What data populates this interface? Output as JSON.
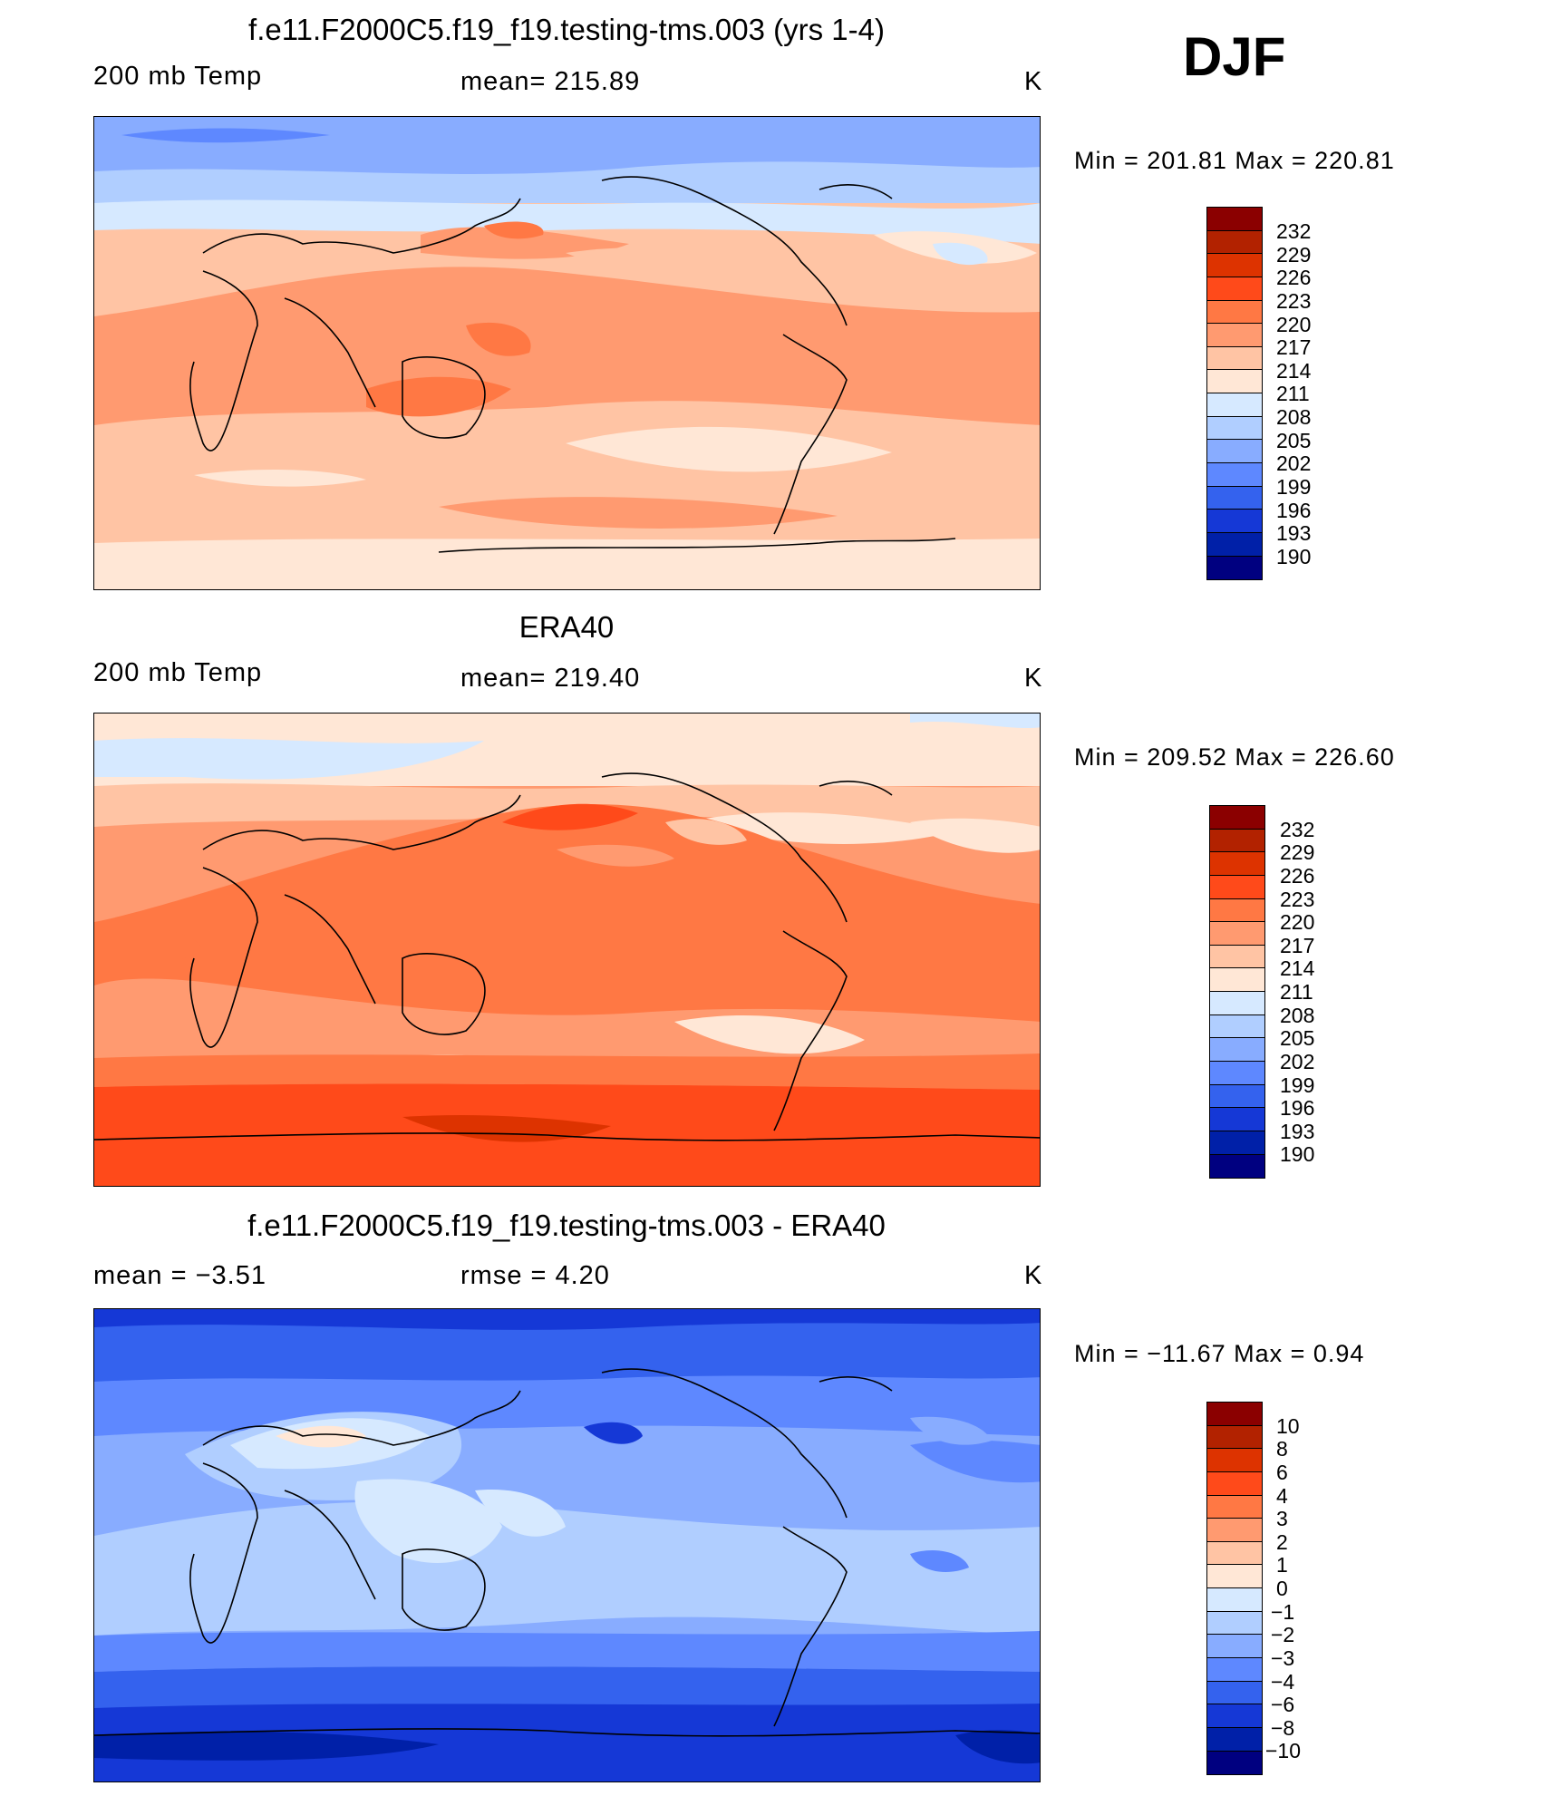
{
  "season": "DJF",
  "panels": [
    {
      "title": "f.e11.F2000C5.f19_f19.testing-tms.003 (yrs 1-4)",
      "left_text": "200 mb Temp",
      "center_text": "mean=  215.89",
      "units": "K",
      "minmax": "Min  =  201.81  Max  =  220.81",
      "levels": [
        "232",
        "229",
        "226",
        "223",
        "220",
        "217",
        "214",
        "211",
        "208",
        "205",
        "202",
        "199",
        "196",
        "193",
        "190"
      ],
      "colors": [
        "#8b0000",
        "#b22200",
        "#dd3300",
        "#ff4a1a",
        "#ff7844",
        "#ff9a70",
        "#ffc4a4",
        "#ffe7d6",
        "#d6e9ff",
        "#b0ceff",
        "#88acff",
        "#5e88ff",
        "#3462ee",
        "#1538d6",
        "#0020a8",
        "#000080"
      ]
    },
    {
      "title": "ERA40",
      "left_text": "200 mb Temp",
      "center_text": "mean=  219.40",
      "units": "K",
      "minmax": "Min  =  209.52  Max  =  226.60",
      "levels": [
        "232",
        "229",
        "226",
        "223",
        "220",
        "217",
        "214",
        "211",
        "208",
        "205",
        "202",
        "199",
        "196",
        "193",
        "190"
      ],
      "colors": [
        "#8b0000",
        "#b22200",
        "#dd3300",
        "#ff4a1a",
        "#ff7844",
        "#ff9a70",
        "#ffc4a4",
        "#ffe7d6",
        "#d6e9ff",
        "#b0ceff",
        "#88acff",
        "#5e88ff",
        "#3462ee",
        "#1538d6",
        "#0020a8",
        "#000080"
      ]
    },
    {
      "title": "f.e11.F2000C5.f19_f19.testing-tms.003 - ERA40",
      "left_text": "mean  =    −3.51",
      "center_text": "rmse  =     4.20",
      "units": "K",
      "minmax": "Min  =  −11.67  Max  =     0.94",
      "levels": [
        "10",
        "8",
        "6",
        "4",
        "3",
        "2",
        "1",
        "0",
        "−1",
        "−2",
        "−3",
        "−4",
        "−6",
        "−8",
        "−10"
      ],
      "colors": [
        "#8b0000",
        "#b22200",
        "#dd3300",
        "#ff4a1a",
        "#ff7844",
        "#ff9a70",
        "#ffc4a4",
        "#ffe7d6",
        "#d6e9ff",
        "#b0ceff",
        "#88acff",
        "#5e88ff",
        "#3462ee",
        "#1538d6",
        "#0020a8",
        "#000080"
      ]
    }
  ]
}
